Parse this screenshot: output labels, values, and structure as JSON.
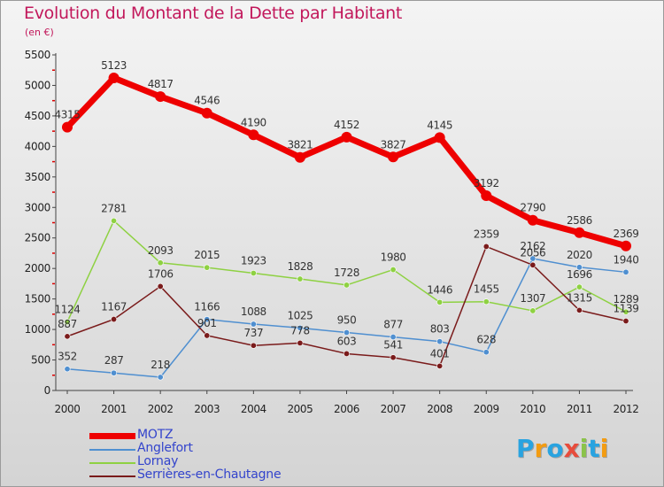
{
  "title": "Evolution du Montant de la Dette par Habitant",
  "subtitle": "(en €)",
  "logo": {
    "text": "Proxiti",
    "letters": [
      {
        "char": "P",
        "color": "#29a3e0"
      },
      {
        "char": "r",
        "color": "#f39c12"
      },
      {
        "char": "o",
        "color": "#29a3e0"
      },
      {
        "char": "x",
        "color": "#e74c3c"
      },
      {
        "char": "i",
        "color": "#8bc34a"
      },
      {
        "char": "t",
        "color": "#29a3e0"
      },
      {
        "char": "i",
        "color": "#f39c12"
      }
    ]
  },
  "chart_data": {
    "type": "line",
    "x": [
      "2000",
      "2001",
      "2002",
      "2003",
      "2004",
      "2005",
      "2006",
      "2007",
      "2008",
      "2009",
      "2010",
      "2011",
      "2012"
    ],
    "ylim": [
      0,
      5500
    ],
    "yticks": [
      0,
      500,
      1000,
      1500,
      2000,
      2500,
      3000,
      3500,
      4000,
      4500,
      5000,
      5500
    ],
    "grid": false,
    "legend_position": "bottom-left",
    "series": [
      {
        "name": "MOTZ",
        "color": "#ee0000",
        "emphasis": true,
        "values": [
          4315,
          5123,
          4817,
          4546,
          4190,
          3821,
          4152,
          3827,
          4145,
          3192,
          2790,
          2586,
          2369
        ]
      },
      {
        "name": "Anglefort",
        "color": "#4f8fd0",
        "values": [
          352,
          287,
          218,
          1166,
          1088,
          1025,
          950,
          877,
          803,
          628,
          2162,
          2020,
          1940
        ]
      },
      {
        "name": "Lornay",
        "color": "#8ed142",
        "values": [
          1124,
          2781,
          2093,
          2015,
          1923,
          1828,
          1728,
          1980,
          1446,
          1455,
          1307,
          1696,
          1289
        ]
      },
      {
        "name": "Serrières-en-Chautagne",
        "color": "#7a1b1b",
        "values": [
          887,
          1167,
          1706,
          901,
          737,
          778,
          603,
          541,
          401,
          2359,
          2056,
          1315,
          1139
        ]
      }
    ]
  }
}
